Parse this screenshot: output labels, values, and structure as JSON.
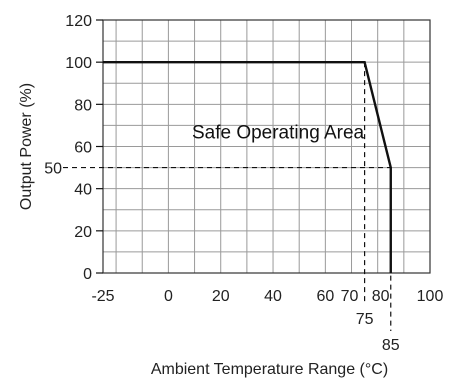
{
  "chart_data": {
    "type": "line",
    "title": "",
    "xlabel": "Ambient Temperature Range (°C)",
    "ylabel": "Output Power (%)",
    "xlim": [
      -25,
      100
    ],
    "ylim": [
      0,
      120
    ],
    "x_ticks": [
      -25,
      0,
      20,
      40,
      60,
      70,
      80,
      100
    ],
    "y_ticks": [
      0,
      20,
      40,
      60,
      80,
      100,
      120
    ],
    "grid": true,
    "series": [
      {
        "x": [
          -25,
          75,
          85,
          85
        ],
        "y": [
          100,
          100,
          50,
          0
        ]
      }
    ],
    "reference_lines": [
      {
        "orientation": "horizontal",
        "value": 50,
        "label": "50"
      },
      {
        "orientation": "vertical",
        "value": 75,
        "label": "75"
      },
      {
        "orientation": "vertical",
        "value": 85,
        "label": "85"
      }
    ],
    "annotation": {
      "text": "Safe Operating Area",
      "x": 40,
      "y": 67
    }
  }
}
